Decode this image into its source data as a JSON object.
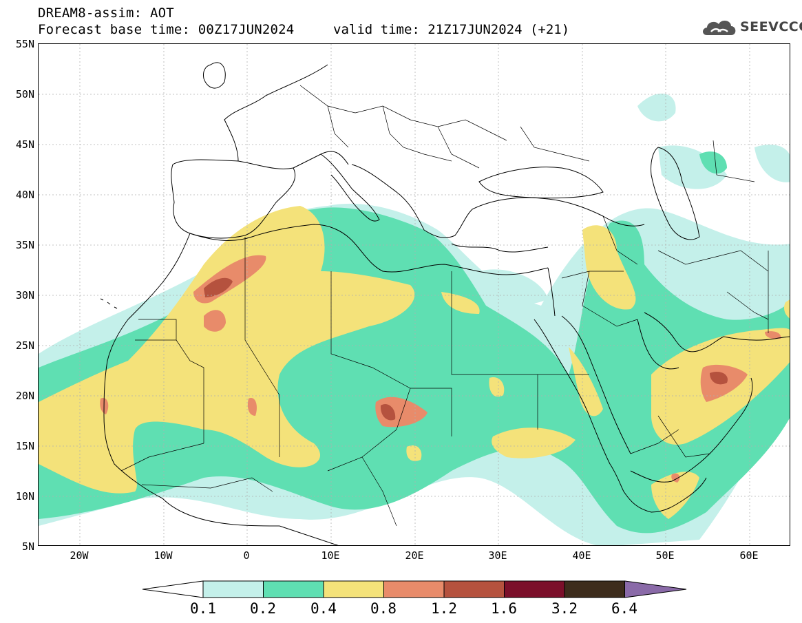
{
  "header": {
    "title_line1": "DREAM8-assim: AOT",
    "title_line2": "Forecast base time: 00Z17JUN2024",
    "valid_time": "valid time: 21Z17JUN2024 (+21)"
  },
  "logo": {
    "text": "SEEVCCC",
    "icon": "cloud-icon",
    "color": "#444444"
  },
  "map": {
    "lat_labels": [
      "55N",
      "50N",
      "45N",
      "40N",
      "35N",
      "30N",
      "25N",
      "20N",
      "15N",
      "10N",
      "5N"
    ],
    "lon_labels": [
      "20W",
      "10W",
      "0",
      "10E",
      "20E",
      "30E",
      "40E",
      "50E",
      "60E"
    ],
    "colors": {
      "land_lines": "#000000",
      "grid_lines": "#b0b0b0"
    }
  },
  "colorbar": {
    "ticks": [
      "0.1",
      "0.2",
      "0.4",
      "0.8",
      "1.2",
      "1.6",
      "3.2",
      "6.4"
    ],
    "colors": [
      "#ffffff",
      "#c4f0ea",
      "#5fdfb2",
      "#f4e27a",
      "#e88b6a",
      "#b5523e",
      "#7b0f2a",
      "#3d2c1c",
      "#8a6aa8"
    ]
  }
}
